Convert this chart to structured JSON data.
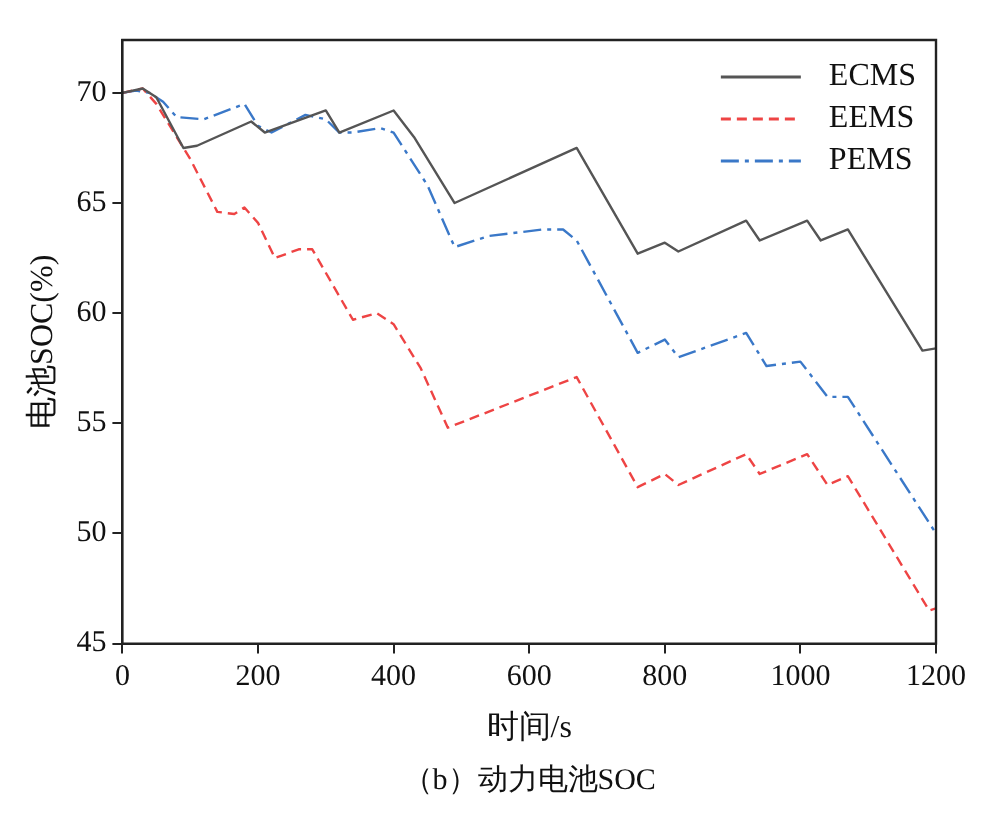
{
  "chart_data": {
    "type": "line",
    "xlabel": "时间/s",
    "ylabel": "电池SOC(%)",
    "annotations": [
      "（b）动力电池SOC"
    ],
    "xlim": [
      0,
      1200
    ],
    "ylim": [
      45,
      72.4
    ],
    "xticks": [
      0,
      200,
      400,
      600,
      800,
      1000,
      1200
    ],
    "yticks": [
      45,
      50,
      55,
      60,
      65,
      70
    ],
    "grid": false,
    "legend": "top right",
    "marker": "none",
    "series": [
      {
        "name": "ECMS",
        "color": "#555555",
        "line_style": "solid",
        "x": [
          0,
          30,
          50,
          90,
          110,
          190,
          210,
          300,
          320,
          400,
          430,
          490,
          670,
          760,
          800,
          820,
          920,
          940,
          1010,
          1030,
          1070,
          1180,
          1200
        ],
        "values": [
          70,
          70.2,
          69.8,
          67.5,
          67.6,
          68.7,
          68.2,
          69.2,
          68.2,
          69.2,
          68,
          65,
          67.5,
          62.7,
          63.2,
          62.8,
          64.2,
          63.3,
          64.2,
          63.3,
          63.8,
          58.3,
          58.4
        ]
      },
      {
        "name": "EEMS",
        "color": "#ee4444",
        "line_style": "dashed",
        "x": [
          0,
          30,
          50,
          100,
          140,
          165,
          180,
          200,
          225,
          260,
          280,
          340,
          375,
          400,
          440,
          480,
          670,
          760,
          800,
          820,
          920,
          940,
          1010,
          1040,
          1070,
          1190,
          1200
        ],
        "values": [
          70,
          70.2,
          69.5,
          67,
          64.6,
          64.5,
          64.8,
          64.1,
          62.5,
          62.9,
          62.9,
          59.7,
          60,
          59.5,
          57.5,
          54.8,
          57.1,
          52.1,
          52.7,
          52.2,
          53.6,
          52.7,
          53.6,
          52.2,
          52.6,
          46.5,
          46.6
        ]
      },
      {
        "name": "PEMS",
        "color": "#3a78c8",
        "line_style": "dashdot",
        "x": [
          0,
          20,
          40,
          60,
          80,
          120,
          180,
          200,
          220,
          270,
          300,
          320,
          340,
          380,
          400,
          450,
          490,
          540,
          620,
          650,
          670,
          760,
          800,
          820,
          920,
          950,
          1000,
          1040,
          1070,
          1200
        ],
        "values": [
          70,
          70.1,
          70,
          69.6,
          68.9,
          68.8,
          69.5,
          68.5,
          68.2,
          69,
          68.8,
          68.2,
          68.2,
          68.4,
          68.2,
          65.8,
          63,
          63.5,
          63.8,
          63.8,
          63.3,
          58.2,
          58.8,
          58,
          59.1,
          57.6,
          57.8,
          56.2,
          56.2,
          50
        ]
      }
    ]
  }
}
